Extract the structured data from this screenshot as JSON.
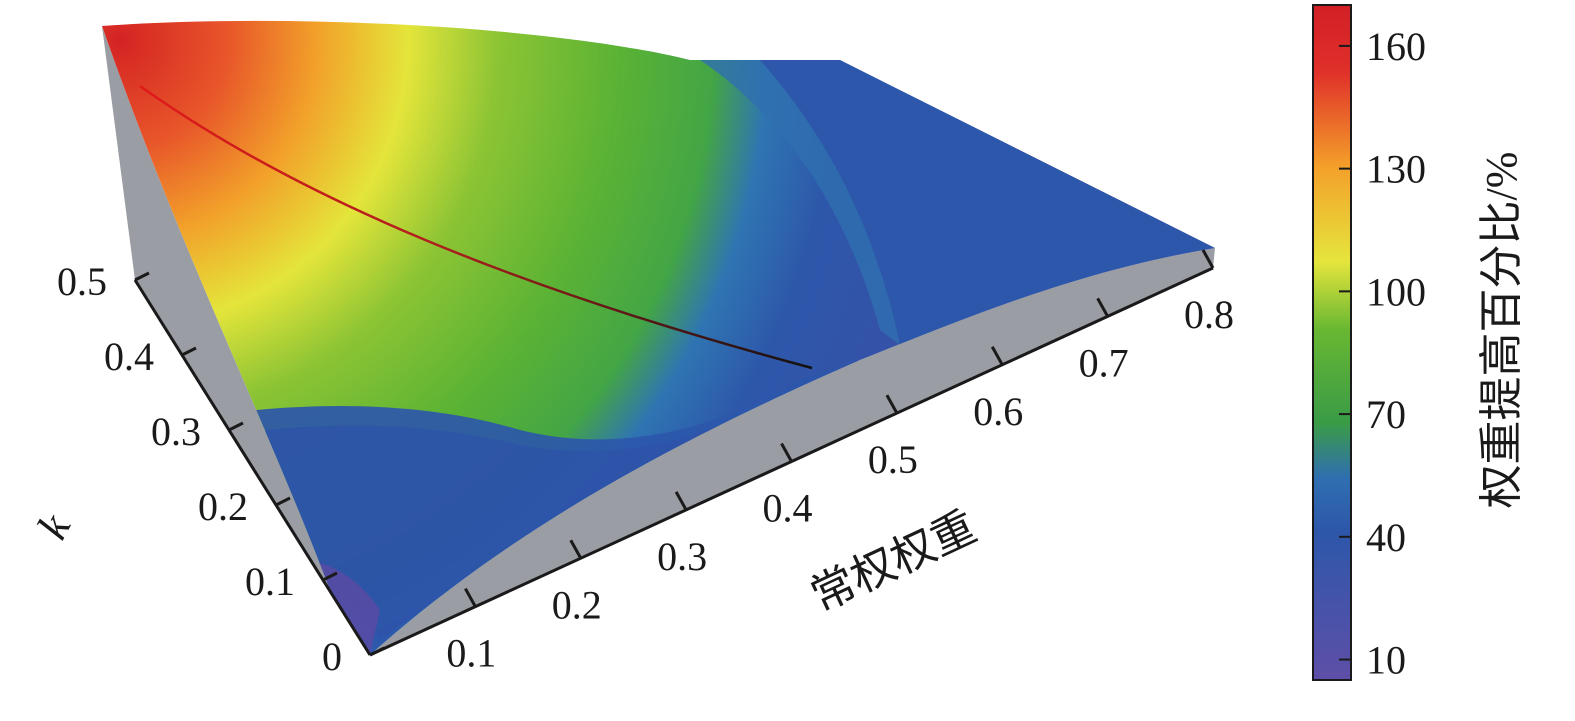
{
  "chart_data": {
    "type": "surface",
    "x_axis": {
      "label": "常权权重",
      "ticks": [
        "0.1",
        "0.2",
        "0.3",
        "0.4",
        "0.5",
        "0.6",
        "0.7",
        "0.8"
      ]
    },
    "y_axis": {
      "label": "k",
      "ticks": [
        "0",
        "0.1",
        "0.2",
        "0.3",
        "0.4",
        "0.5"
      ]
    },
    "colorbar": {
      "label": "权重提高百分比/%",
      "ticks": [
        "10",
        "40",
        "70",
        "100",
        "130",
        "160"
      ],
      "range": [
        5,
        170
      ],
      "colormap": [
        "#5e4fa8",
        "#2e55a8",
        "#3a9b47",
        "#69b832",
        "#e3e43a",
        "#f4a02a",
        "#e0302a",
        "#d21f26"
      ]
    },
    "surface": {
      "color_at_max": "#d42323",
      "color_at_min": "#5b4aa5",
      "side_fill": "#9a9da3"
    },
    "ridge_line": {
      "color_start": "#e01a1a",
      "color_end": "#111111"
    }
  }
}
